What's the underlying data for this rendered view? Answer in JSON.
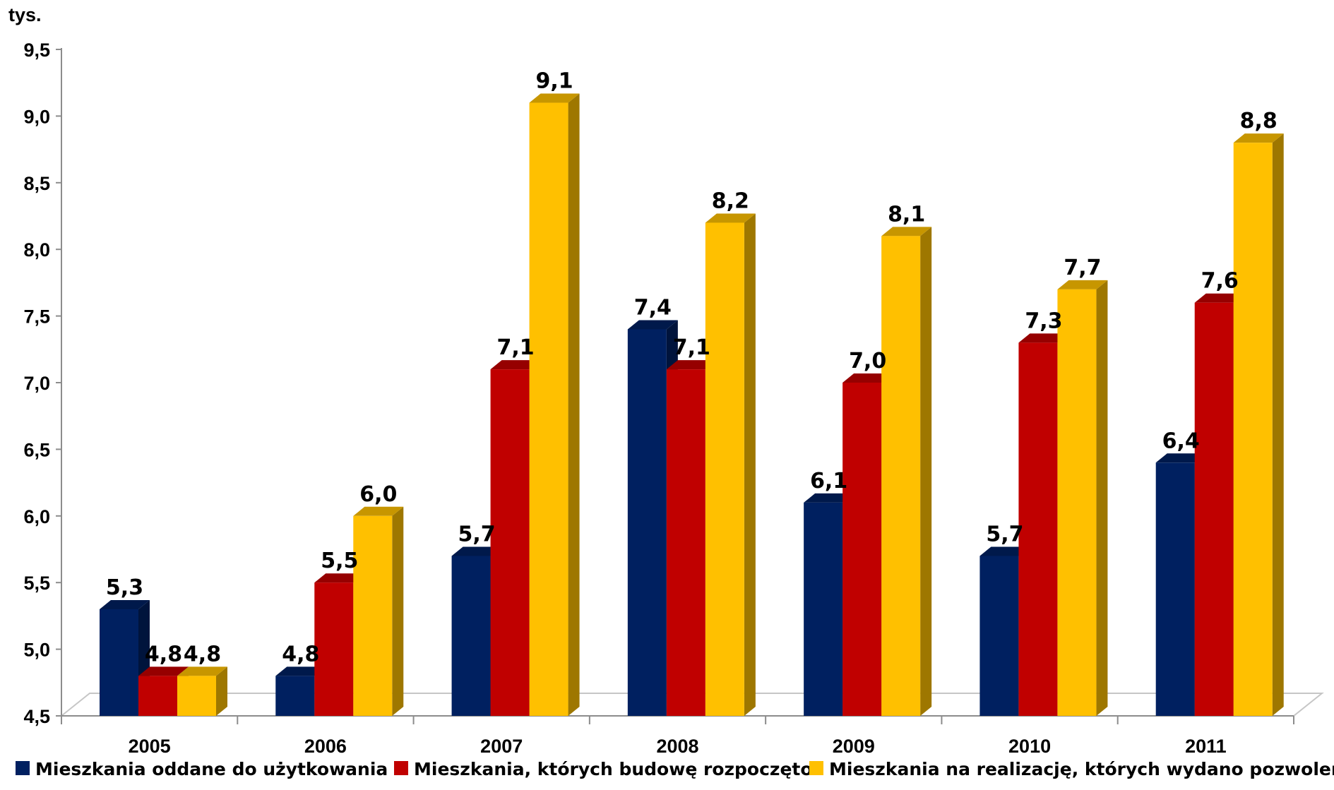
{
  "chart_data": {
    "type": "bar",
    "unit_label": "tys.",
    "categories": [
      "2005",
      "2006",
      "2007",
      "2008",
      "2009",
      "2010",
      "2011"
    ],
    "y_ticks": [
      "4,5",
      "5,0",
      "5,5",
      "6,0",
      "6,5",
      "7,0",
      "7,5",
      "8,0",
      "8,5",
      "9,0",
      "9,5"
    ],
    "ylim": [
      4.5,
      9.5
    ],
    "grid": false,
    "legend_position": "bottom",
    "series": [
      {
        "name": "Mieszkania oddane do użytkowania",
        "color": "#002060",
        "values": [
          5.3,
          4.8,
          5.7,
          7.4,
          6.1,
          5.7,
          6.4
        ],
        "labels": [
          "5,3",
          "4,8",
          "5,7",
          "7,4",
          "6,1",
          "5,7",
          "6,4"
        ]
      },
      {
        "name": "Mieszkania, których budowę rozpoczęto",
        "color": "#C00000",
        "values": [
          4.8,
          5.5,
          7.1,
          7.1,
          7.0,
          7.3,
          7.6
        ],
        "labels": [
          "4,8",
          "5,5",
          "7,1",
          "7,1",
          "7,0",
          "7,3",
          "7,6"
        ]
      },
      {
        "name": "Mieszkania na realizację, których wydano pozwolenia",
        "color": "#FFC000",
        "values": [
          4.8,
          6.0,
          9.1,
          8.2,
          8.1,
          7.7,
          8.8
        ],
        "labels": [
          "4,8",
          "6,0",
          "9,1",
          "8,2",
          "8,1",
          "7,7",
          "8,8"
        ]
      }
    ]
  }
}
